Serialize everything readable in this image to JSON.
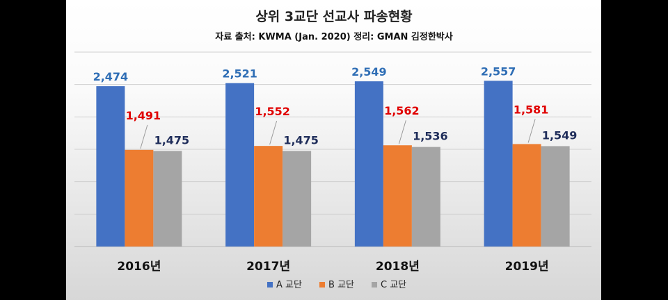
{
  "chart_data": {
    "type": "bar",
    "title": "상위 3교단 선교사 파송현황",
    "subtitle": "자료 출처: KWMA (Jan. 2020) 정리: GMAN 김정한박사",
    "categories": [
      "2016년",
      "2017년",
      "2018년",
      "2019년"
    ],
    "series": [
      {
        "name": "A 교단",
        "values": [
          2474,
          2521,
          2549,
          2557
        ],
        "labels": [
          "2,474",
          "2,521",
          "2,549",
          "2,557"
        ],
        "color": "#4472C4",
        "label_color": "#2F6EB5"
      },
      {
        "name": "B 교단",
        "values": [
          1491,
          1552,
          1562,
          1581
        ],
        "labels": [
          "1,491",
          "1,552",
          "1,562",
          "1,581"
        ],
        "color": "#ED7D31",
        "label_color": "#E00000"
      },
      {
        "name": "C 교단",
        "values": [
          1475,
          1475,
          1536,
          1549
        ],
        "labels": [
          "1,475",
          "1,475",
          "1,536",
          "1,549"
        ],
        "color": "#A5A5A5",
        "label_color": "#1F2D5A"
      }
    ],
    "ylim": [
      0,
      3000
    ],
    "grid": true,
    "legend": "bottom"
  }
}
